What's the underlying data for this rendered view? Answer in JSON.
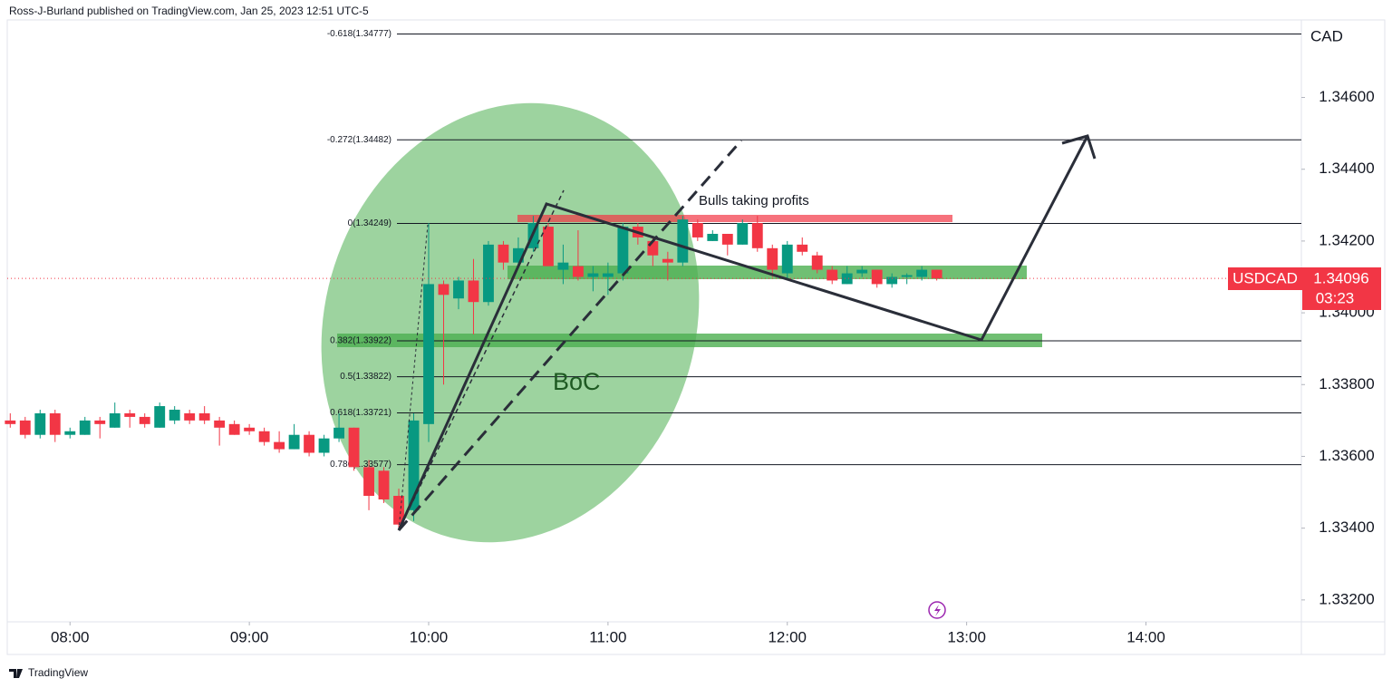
{
  "header": "Ross-J-Burland published on TradingView.com, Jan 25, 2023 12:51 UTC-5",
  "footer": "TradingView",
  "chart_data": {
    "type": "candlestick",
    "currency": "CAD",
    "symbol": "USDCAD",
    "last_price": 1.34096,
    "countdown": "03:23",
    "up_color": "#089981",
    "down_color": "#f23645",
    "grid": false,
    "x": [
      "07:40",
      "07:45",
      "07:50",
      "07:55",
      "08:00",
      "08:05",
      "08:10",
      "08:15",
      "08:20",
      "08:25",
      "08:30",
      "08:35",
      "08:40",
      "08:45",
      "08:50",
      "08:55",
      "09:00",
      "09:05",
      "09:10",
      "09:15",
      "09:20",
      "09:25",
      "09:30",
      "09:35",
      "09:40",
      "09:45",
      "09:50",
      "09:55",
      "10:00",
      "10:05",
      "10:10",
      "10:15",
      "10:20",
      "10:25",
      "10:30",
      "10:35",
      "10:40",
      "10:45",
      "10:50",
      "10:55",
      "11:00",
      "11:05",
      "11:10",
      "11:15",
      "11:20",
      "11:25",
      "11:30",
      "11:35",
      "11:40",
      "11:45",
      "11:50",
      "11:55",
      "12:00",
      "12:05",
      "12:10",
      "12:15",
      "12:20",
      "12:25",
      "12:30",
      "12:35",
      "12:40",
      "12:45",
      "12:50"
    ],
    "open": [
      1.337,
      1.337,
      1.3366,
      1.3372,
      1.3366,
      1.3366,
      1.337,
      1.3368,
      1.3372,
      1.3371,
      1.3368,
      1.337,
      1.3372,
      1.3372,
      1.337,
      1.3369,
      1.3368,
      1.3367,
      1.3364,
      1.3362,
      1.3366,
      1.3361,
      1.3365,
      1.3368,
      1.3357,
      1.3356,
      1.3349,
      1.3345,
      1.3369,
      1.3408,
      1.3404,
      1.3409,
      1.3403,
      1.3419,
      1.3414,
      1.3418,
      1.3424,
      1.3412,
      1.3413,
      1.341,
      1.341,
      1.3411,
      1.3424,
      1.342,
      1.3415,
      1.3414,
      1.3425,
      1.342,
      1.3422,
      1.3419,
      1.3425,
      1.3418,
      1.3411,
      1.3419,
      1.3416,
      1.3412,
      1.3408,
      1.3411,
      1.3412,
      1.3408,
      1.341,
      1.341,
      1.3412
    ],
    "high": [
      1.3372,
      1.3371,
      1.3373,
      1.3373,
      1.3368,
      1.3371,
      1.3371,
      1.3375,
      1.3373,
      1.3372,
      1.3375,
      1.3374,
      1.3373,
      1.3374,
      1.3371,
      1.337,
      1.3369,
      1.3368,
      1.3367,
      1.3369,
      1.3367,
      1.3366,
      1.3372,
      1.3368,
      1.3359,
      1.3357,
      1.3351,
      1.3372,
      1.3425,
      1.3409,
      1.341,
      1.3415,
      1.342,
      1.342,
      1.3421,
      1.3427,
      1.3425,
      1.3419,
      1.3423,
      1.3413,
      1.3414,
      1.3425,
      1.3425,
      1.3421,
      1.3417,
      1.3427,
      1.3426,
      1.3423,
      1.3422,
      1.3426,
      1.3427,
      1.3419,
      1.342,
      1.3421,
      1.3417,
      1.3413,
      1.3413,
      1.3413,
      1.3412,
      1.3411,
      1.3411,
      1.3413,
      1.3412
    ],
    "low": [
      1.3368,
      1.3365,
      1.3365,
      1.3364,
      1.3365,
      1.3366,
      1.3365,
      1.3368,
      1.3368,
      1.3368,
      1.3368,
      1.3369,
      1.3369,
      1.3369,
      1.3363,
      1.3366,
      1.3366,
      1.3363,
      1.3361,
      1.3362,
      1.336,
      1.336,
      1.3364,
      1.3356,
      1.3345,
      1.3347,
      1.334,
      1.3342,
      1.3364,
      1.338,
      1.3401,
      1.3394,
      1.3402,
      1.3412,
      1.3413,
      1.3417,
      1.3413,
      1.3408,
      1.3409,
      1.3406,
      1.3405,
      1.3409,
      1.3419,
      1.3413,
      1.3409,
      1.3413,
      1.342,
      1.342,
      1.3416,
      1.3419,
      1.3417,
      1.341,
      1.3409,
      1.3416,
      1.3411,
      1.3408,
      1.3408,
      1.341,
      1.3407,
      1.3407,
      1.3408,
      1.3409,
      1.3409
    ],
    "close": [
      1.3369,
      1.3366,
      1.3372,
      1.3366,
      1.3367,
      1.337,
      1.3369,
      1.3372,
      1.3371,
      1.3369,
      1.3374,
      1.3373,
      1.337,
      1.337,
      1.3368,
      1.3366,
      1.3367,
      1.3364,
      1.3362,
      1.3366,
      1.3361,
      1.3365,
      1.3368,
      1.3357,
      1.3349,
      1.3348,
      1.3341,
      1.337,
      1.3408,
      1.3405,
      1.3409,
      1.3403,
      1.3419,
      1.3414,
      1.3418,
      1.3425,
      1.3413,
      1.3414,
      1.341,
      1.3411,
      1.3411,
      1.3424,
      1.3421,
      1.3416,
      1.3414,
      1.3426,
      1.3421,
      1.3422,
      1.3419,
      1.3425,
      1.3418,
      1.3412,
      1.3419,
      1.3417,
      1.3412,
      1.3409,
      1.3411,
      1.3412,
      1.3408,
      1.341,
      1.34105,
      1.3412,
      1.34096
    ],
    "xlim": [
      "07:39",
      "14:52"
    ],
    "xticks": [
      "08:00",
      "09:00",
      "10:00",
      "11:00",
      "12:00",
      "13:00",
      "14:00"
    ],
    "ylim": [
      1.33139,
      1.34816
    ],
    "yticks": [
      {
        "value": 1.332,
        "label": "1.33200"
      },
      {
        "value": 1.334,
        "label": "1.33400"
      },
      {
        "value": 1.336,
        "label": "1.33600"
      },
      {
        "value": 1.338,
        "label": "1.33800"
      },
      {
        "value": 1.34,
        "label": "1.34000"
      },
      {
        "value": 1.342,
        "label": "1.34200"
      },
      {
        "value": 1.344,
        "label": "1.34400"
      },
      {
        "value": 1.346,
        "label": "1.34600"
      }
    ],
    "fib_levels": [
      {
        "value": 1.34777,
        "label": "-0.618(1.34777)"
      },
      {
        "value": 1.34482,
        "label": "-0.272(1.34482)"
      },
      {
        "value": 1.34249,
        "label": "0(1.34249)"
      },
      {
        "value": 1.33922,
        "label": "0.382(1.33922)"
      },
      {
        "value": 1.33822,
        "label": "0.5(1.33822)"
      },
      {
        "value": 1.33721,
        "label": "0.618(1.33721)"
      },
      {
        "value": 1.33577,
        "label": "0.786(1.33577)"
      }
    ],
    "annotations": [
      "Bulls taking profits",
      "BoC"
    ]
  }
}
